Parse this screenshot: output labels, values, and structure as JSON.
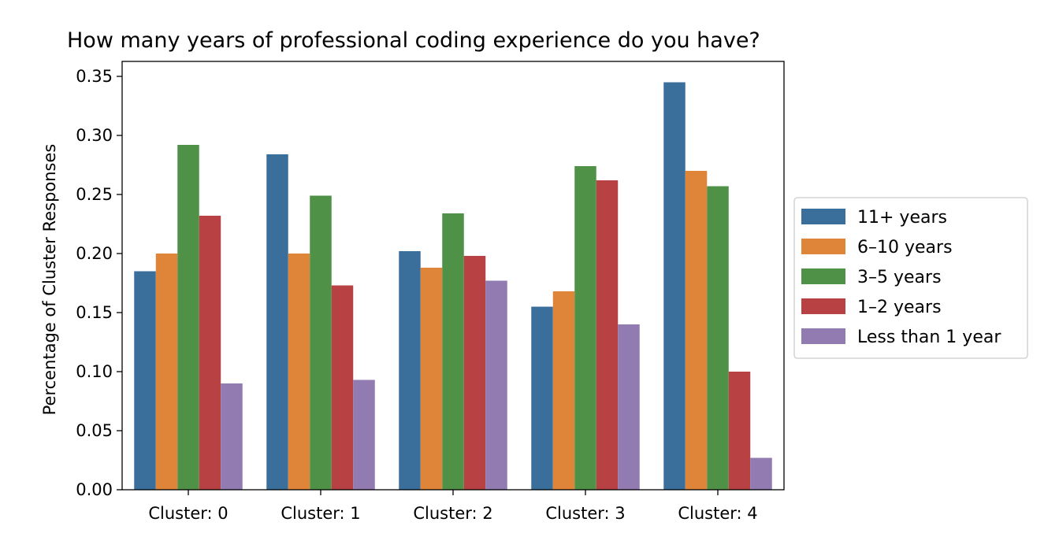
{
  "chart_data": {
    "type": "bar",
    "title": "How many years of professional coding experience do you have?",
    "xlabel": "",
    "ylabel": "Percentage of Cluster Responses",
    "ylim": [
      0,
      0.35
    ],
    "yticks": [
      "0.00",
      "0.05",
      "0.10",
      "0.15",
      "0.20",
      "0.25",
      "0.30",
      "0.35"
    ],
    "categories": [
      "Cluster: 0",
      "Cluster: 1",
      "Cluster: 2",
      "Cluster: 3",
      "Cluster: 4"
    ],
    "legend_position": "center-right outside",
    "grid": false,
    "series": [
      {
        "name": "11+ years",
        "color": "#3a6f9c",
        "values": [
          0.185,
          0.284,
          0.202,
          0.155,
          0.345
        ]
      },
      {
        "name": "6–10 years",
        "color": "#df8539",
        "values": [
          0.2,
          0.2,
          0.188,
          0.168,
          0.27
        ]
      },
      {
        "name": "3–5 years",
        "color": "#4f9247",
        "values": [
          0.292,
          0.249,
          0.234,
          0.274,
          0.257
        ]
      },
      {
        "name": "1–2 years",
        "color": "#b84243",
        "values": [
          0.232,
          0.173,
          0.198,
          0.262,
          0.1
        ]
      },
      {
        "name": "Less than 1 year",
        "color": "#917bb1",
        "values": [
          0.09,
          0.093,
          0.177,
          0.14,
          0.027
        ]
      }
    ]
  }
}
